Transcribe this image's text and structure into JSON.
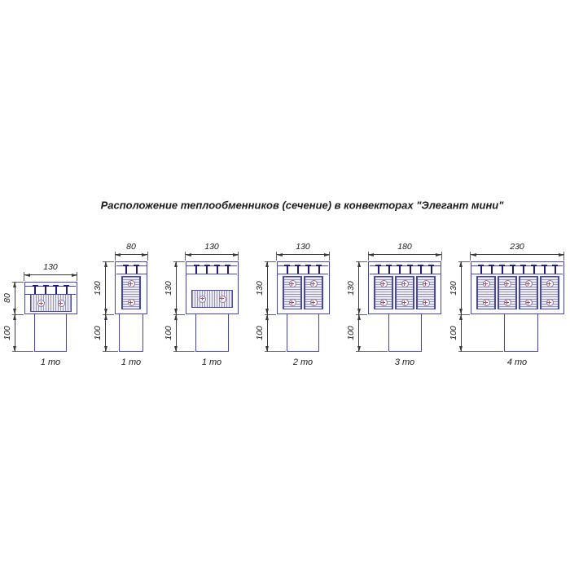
{
  "title": "Расположение теплообменников (сечение) в конвекторах \"Элегант мини\"",
  "colors": {
    "casing_blue": "#4343cb",
    "grille_navy": "#1b1b96",
    "hatch_line": "#9898a8",
    "hatch_bg": "#ecebf2",
    "pipe_outline": "#7b76c9",
    "pipe_mark": "#c2523c",
    "dim_line": "#3a3a3a",
    "text": "#1a1a1a"
  },
  "diagrams": [
    {
      "width_label": "130",
      "height_label": "80",
      "depth_label": "100",
      "count_label": "1 то",
      "width_mm": 130,
      "height_mm": 80,
      "depth_mm": 100,
      "exchangers": 1,
      "orientation": "horizontal",
      "grille_pins": 4
    },
    {
      "width_label": "80",
      "height_label": "130",
      "depth_label": "100",
      "count_label": "1 то",
      "width_mm": 80,
      "height_mm": 130,
      "depth_mm": 100,
      "exchangers": 1,
      "orientation": "vertical",
      "grille_pins": 2
    },
    {
      "width_label": "130",
      "height_label": "130",
      "depth_label": "100",
      "count_label": "1 то",
      "width_mm": 130,
      "height_mm": 130,
      "depth_mm": 100,
      "exchangers": 1,
      "orientation": "horizontal",
      "grille_pins": 4
    },
    {
      "width_label": "130",
      "height_label": "130",
      "depth_label": "100",
      "count_label": "2 то",
      "width_mm": 130,
      "height_mm": 130,
      "depth_mm": 100,
      "exchangers": 2,
      "orientation": "vertical",
      "grille_pins": 4
    },
    {
      "width_label": "180",
      "height_label": "130",
      "depth_label": "100",
      "count_label": "3 то",
      "width_mm": 180,
      "height_mm": 130,
      "depth_mm": 100,
      "exchangers": 3,
      "orientation": "vertical",
      "grille_pins": 6
    },
    {
      "width_label": "230",
      "height_label": "130",
      "depth_label": "100",
      "count_label": "4 то",
      "width_mm": 230,
      "height_mm": 130,
      "depth_mm": 100,
      "exchangers": 4,
      "orientation": "vertical",
      "grille_pins": 8
    }
  ]
}
